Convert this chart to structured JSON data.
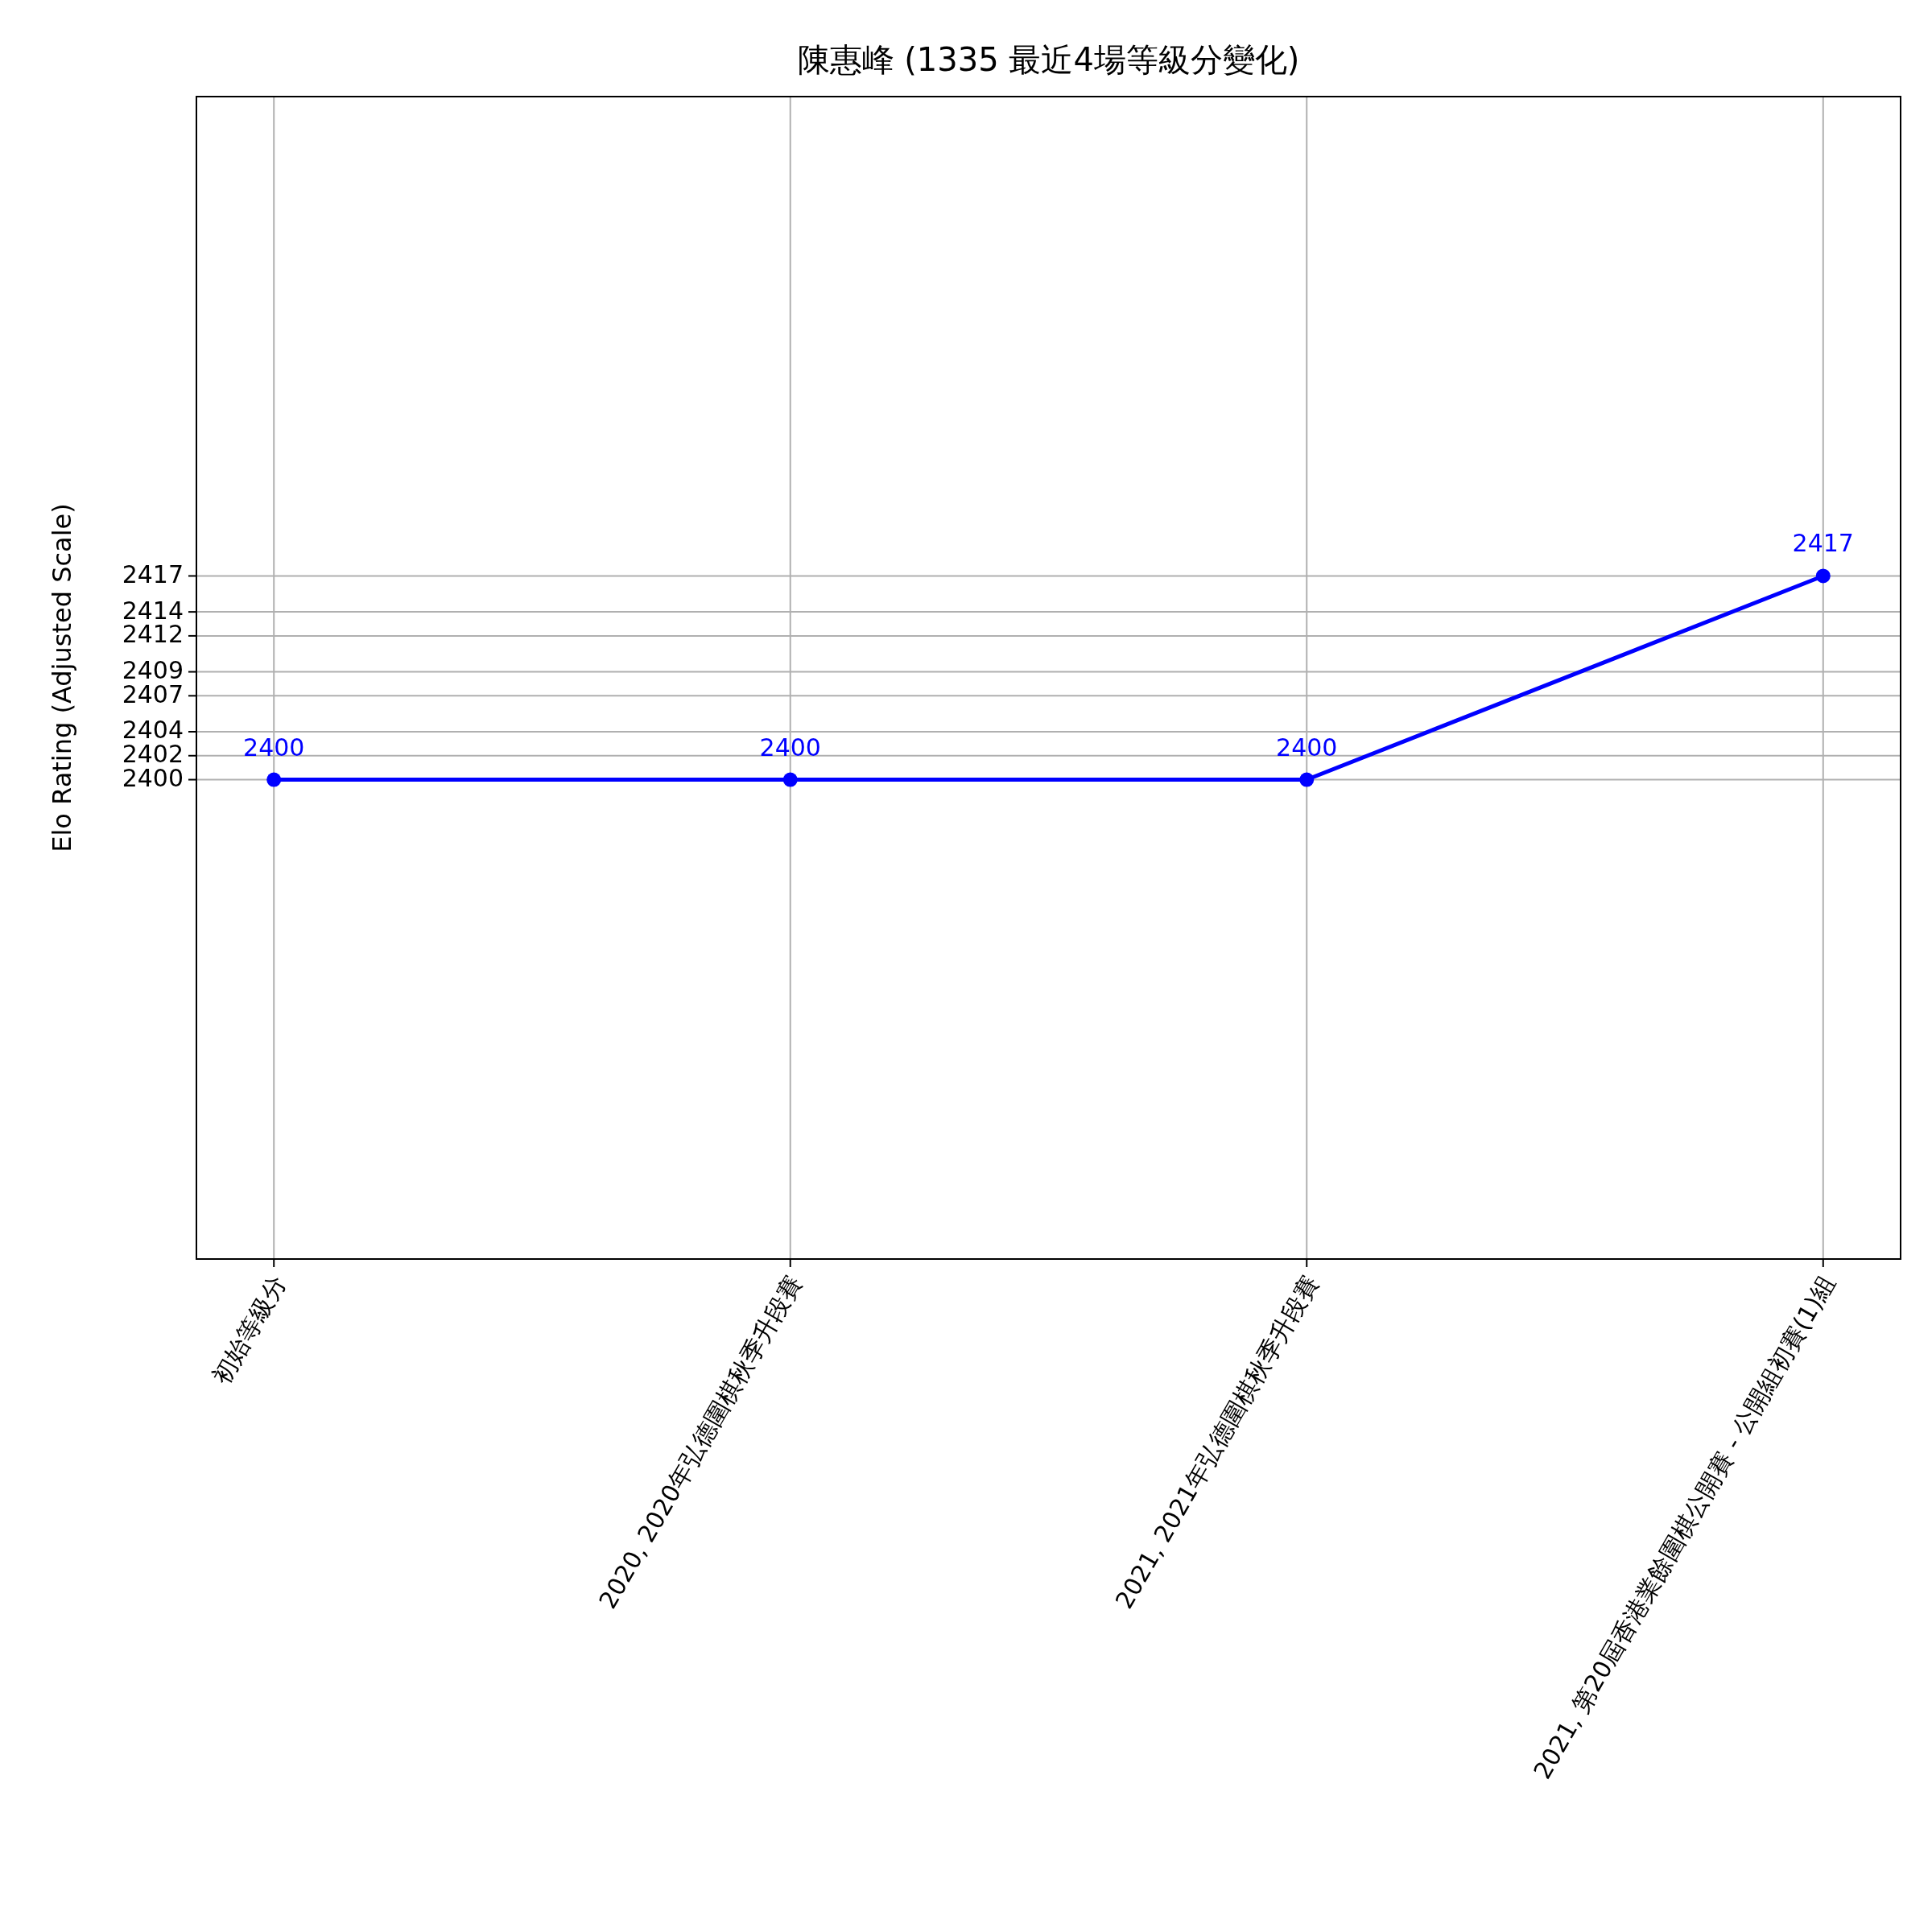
{
  "chart_data": {
    "type": "line",
    "title": "陳惠峰 (1335 最近4場等級分變化)",
    "ylabel": "Elo Rating (Adjusted Scale)",
    "categories": [
      "初始等級分",
      "2020, 2020年弘德圍棋秋季升段賽",
      "2021, 2021年弘德圍棋秋季升段賽",
      "2021, 第20屆香港業餘圍棋公開賽 - 公開組初賽(1)組"
    ],
    "series": [
      {
        "color": "#0000ff",
        "values": [
          2400,
          2400,
          2400,
          2417
        ]
      }
    ],
    "ylim": [
      2360,
      2457
    ],
    "yticks": [
      2400,
      2402,
      2404,
      2407,
      2409,
      2412,
      2414,
      2417
    ],
    "grid": true,
    "marker": "circle",
    "line_style": "solid",
    "data_labels": true
  }
}
